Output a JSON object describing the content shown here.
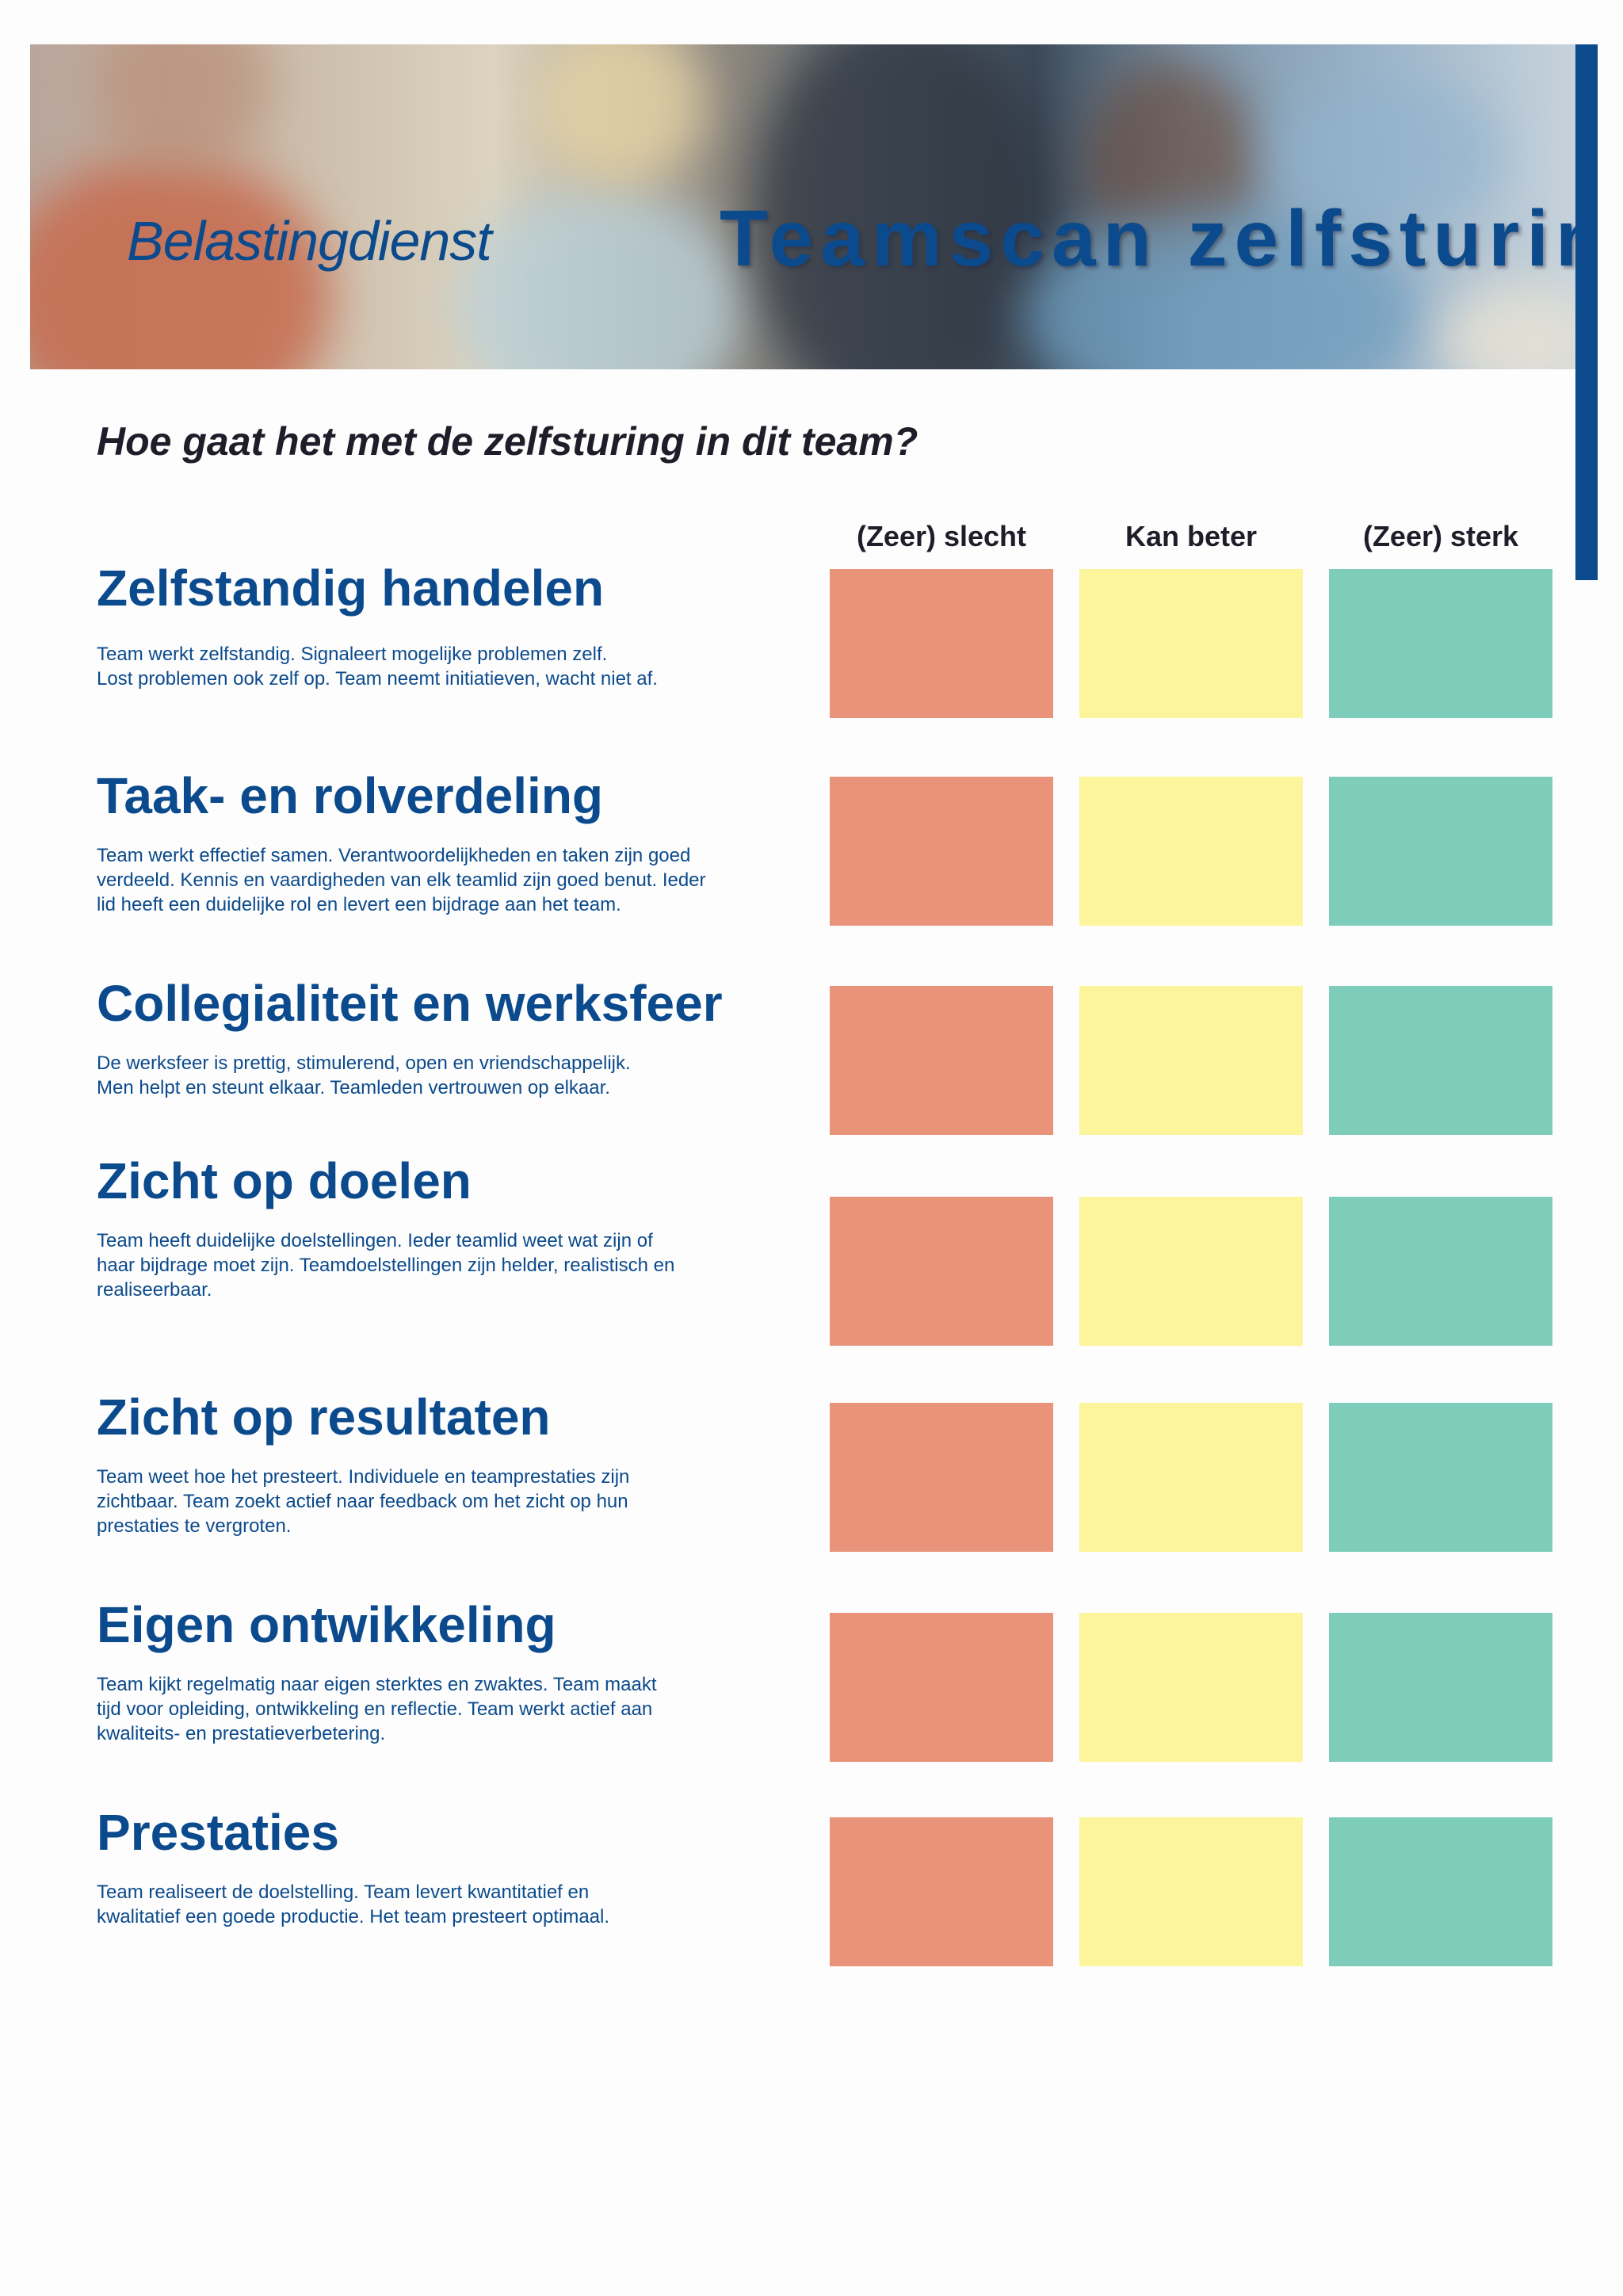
{
  "header": {
    "brand": "Belastingdienst",
    "title": "Teamscan zelfsturing"
  },
  "question": "Hoe gaat het met de zelfsturing in dit team?",
  "columns": [
    "(Zeer) slecht",
    "Kan beter",
    "(Zeer) sterk"
  ],
  "colors": {
    "accent": "#0b4a8c",
    "slecht": "#e8937a",
    "kan_beter": "#fdf59b",
    "sterk": "#7ecdbb"
  },
  "sections": [
    {
      "title": "Zelfstandig handelen",
      "text": "Team werkt zelfstandig. Signaleert mogelijke problemen zelf.\nLost problemen ook zelf op. Team neemt initiatieven, wacht niet af."
    },
    {
      "title": "Taak- en rolverdeling",
      "text": "Team werkt effectief samen. Verantwoordelijkheden en taken zijn goed\nverdeeld. Kennis en vaardigheden van elk teamlid zijn goed benut. Ieder\nlid heeft een duidelijke rol en levert een bijdrage aan het team."
    },
    {
      "title": "Collegialiteit en werksfeer",
      "text": "De werksfeer is prettig, stimulerend, open en vriendschappelijk.\nMen helpt en steunt elkaar. Teamleden vertrouwen op elkaar."
    },
    {
      "title": "Zicht op doelen",
      "text": "Team heeft duidelijke doelstellingen. Ieder teamlid weet wat zijn of\nhaar bijdrage moet zijn. Teamdoelstellingen zijn helder, realistisch en\nrealiseerbaar."
    },
    {
      "title": "Zicht op resultaten",
      "text": "Team weet hoe het presteert. Individuele en teamprestaties zijn\nzichtbaar. Team zoekt actief naar feedback om het zicht op hun\nprestaties te vergroten."
    },
    {
      "title": "Eigen ontwikkeling",
      "text": "Team kijkt regelmatig naar eigen sterktes en zwaktes. Team maakt\ntijd voor opleiding, ontwikkeling en reflectie. Team werkt actief aan\nkwaliteits- en prestatieverbetering."
    },
    {
      "title": "Prestaties",
      "text": "Team realiseert de doelstelling. Team levert kwantitatief en\nkwalitatief een goede productie. Het team presteert optimaal."
    }
  ]
}
